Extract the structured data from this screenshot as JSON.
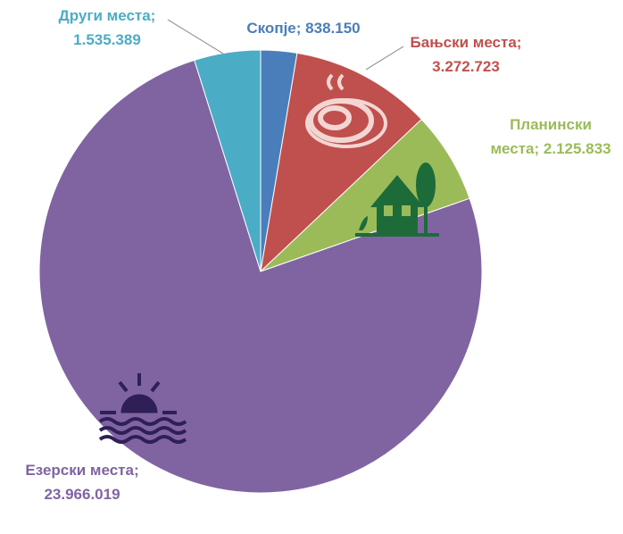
{
  "chart_data": {
    "type": "pie",
    "categories": [
      "Скопје;",
      "Бањски места;",
      "Планински места;",
      "Езерски места;",
      "Други места;"
    ],
    "values": [
      838150,
      3272723,
      2125833,
      23966019,
      1535389
    ],
    "value_labels": [
      "838.150",
      "3.272.723",
      "2.125.833",
      "23.966.019",
      "1.535.389"
    ],
    "colors": [
      "#4a7ebb",
      "#c0504d",
      "#9bbb59",
      "#8064a2",
      "#4bacc6"
    ]
  }
}
